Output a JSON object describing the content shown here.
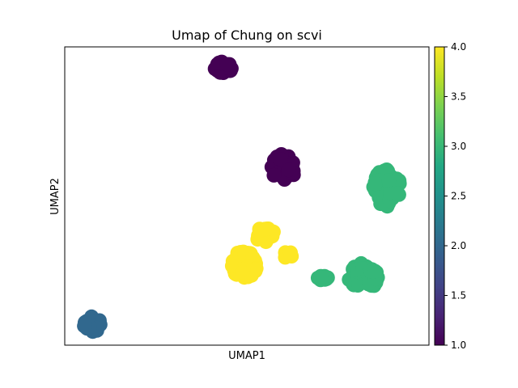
{
  "chart_data": {
    "type": "scatter",
    "title": "Umap of Chung on scvi",
    "xlabel": "UMAP1",
    "ylabel": "UMAP2",
    "x_ticks_shown": false,
    "y_ticks_shown": false,
    "grid": false,
    "color_scale": {
      "name": "viridis",
      "range": [
        1.0,
        4.0
      ],
      "ticks": [
        "1.0",
        "1.5",
        "2.0",
        "2.5",
        "3.0",
        "3.5",
        "4.0"
      ],
      "colors": {
        "1": "#440154",
        "2": "#31688e",
        "3": "#35b779",
        "4": "#fde725"
      }
    },
    "clusters": [
      {
        "value": 1,
        "x": 5.2,
        "y": 9.3
      },
      {
        "value": 1,
        "x": 7.2,
        "y": 6.0
      },
      {
        "value": 2,
        "x": 0.9,
        "y": 0.7
      },
      {
        "value": 3,
        "x": 10.6,
        "y": 5.3
      },
      {
        "value": 3,
        "x": 9.8,
        "y": 2.3
      },
      {
        "value": 3,
        "x": 8.5,
        "y": 2.2
      },
      {
        "value": 4,
        "x": 5.9,
        "y": 2.7
      },
      {
        "value": 4,
        "x": 6.6,
        "y": 3.7
      },
      {
        "value": 4,
        "x": 7.4,
        "y": 3.0
      }
    ]
  }
}
